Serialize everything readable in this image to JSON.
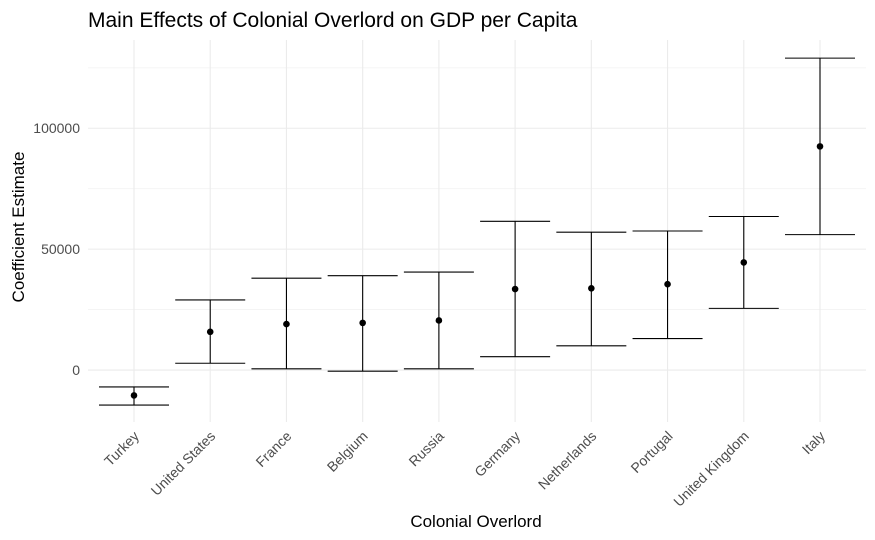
{
  "chart_data": {
    "type": "scatter",
    "subtype": "point-with-errorbars",
    "title": "Main Effects of Colonial Overlord on GDP per Capita",
    "xlabel": "Colonial Overlord",
    "ylabel": "Coefficient Estimate",
    "categories": [
      "Turkey",
      "United States",
      "France",
      "Belgium",
      "Russia",
      "Germany",
      "Netherlands",
      "Portugal",
      "United Kingdom",
      "Italy"
    ],
    "series": [
      {
        "estimate": [
          -10500,
          15800,
          19000,
          19500,
          20500,
          33500,
          33800,
          35500,
          44500,
          92500
        ],
        "lower": [
          -14500,
          2800,
          500,
          -500,
          500,
          5500,
          10000,
          13000,
          25500,
          56000
        ],
        "upper": [
          -7000,
          29000,
          38000,
          39000,
          40500,
          61500,
          57000,
          57500,
          63500,
          129000
        ]
      }
    ],
    "yticks": [
      0,
      50000,
      100000
    ],
    "ytick_labels": [
      "0",
      "50000",
      "100000"
    ],
    "ylim": [
      -21500,
      136500
    ],
    "grid": true,
    "legend": "none",
    "colors": {
      "point": "#000000",
      "errorbar": "#000000",
      "grid": "#ebebeb",
      "tick_text": "#4d4d4d"
    }
  }
}
